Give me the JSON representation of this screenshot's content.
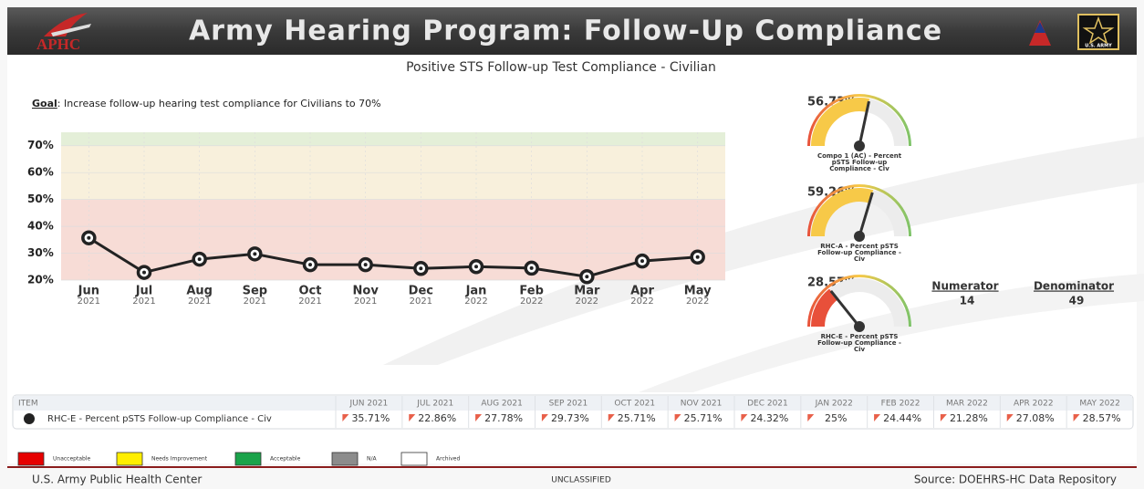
{
  "header": {
    "title": "Army Hearing Program: Follow-Up Compliance",
    "logo_left": "APHC",
    "logo_right": "U.S. ARMY"
  },
  "subtitle": "Positive STS Follow-up Test Compliance - Civilian",
  "goal": {
    "label": "Goal",
    "text": ": Increase follow-up hearing test compliance for Civilians to 70%"
  },
  "chart_data": {
    "type": "line",
    "categories": [
      "Jun",
      "Jul",
      "Aug",
      "Sep",
      "Oct",
      "Nov",
      "Dec",
      "Jan",
      "Feb",
      "Mar",
      "Apr",
      "May"
    ],
    "category_years": [
      "2021",
      "2021",
      "2021",
      "2021",
      "2021",
      "2021",
      "2021",
      "2022",
      "2022",
      "2022",
      "2022",
      "2022"
    ],
    "values": [
      35.71,
      22.86,
      27.78,
      29.73,
      25.71,
      25.71,
      24.32,
      25,
      24.44,
      21.28,
      27.08,
      28.57
    ],
    "color": "#222222",
    "ylim": [
      20,
      75
    ],
    "yticks": [
      {
        "value": 20,
        "label": "20%"
      },
      {
        "value": 30,
        "label": "30%"
      },
      {
        "value": 40,
        "label": "40%"
      },
      {
        "value": 50,
        "label": "50%"
      },
      {
        "value": 60,
        "label": "60%"
      },
      {
        "value": 70,
        "label": "70%"
      }
    ],
    "grid": true,
    "bands": [
      {
        "from": 20,
        "to": 50,
        "color": "#f7dcd6"
      },
      {
        "from": 50,
        "to": 70,
        "color": "#f8f0dc"
      },
      {
        "from": 70,
        "to": 75,
        "color": "#e4efd8"
      }
    ]
  },
  "gauge_range": [
    0,
    100
  ],
  "gauges": [
    {
      "value": 56.73,
      "label": "56.73%",
      "caption": [
        "Compo 1 (AC) - Percent",
        "pSTS Follow-up",
        "Compliance - Civ"
      ],
      "color": "#f7c948"
    },
    {
      "value": 59.26,
      "label": "59.26%",
      "caption": [
        "RHC-A - Percent pSTS",
        "Follow-up Compliance -",
        "Civ"
      ],
      "color": "#f7c948"
    },
    {
      "value": 28.57,
      "label": "28.57%",
      "caption": [
        "RHC-E - Percent pSTS",
        "Follow-up Compliance -",
        "Civ"
      ],
      "color": "#e8503a"
    }
  ],
  "counts": {
    "numerator_label": "Numerator",
    "numerator": 14,
    "denominator_label": "Denominator",
    "denominator": 49
  },
  "table": {
    "header": [
      "ITEM",
      "JUN 2021",
      "JUL 2021",
      "AUG 2021",
      "SEP 2021",
      "OCT 2021",
      "NOV 2021",
      "DEC 2021",
      "JAN 2022",
      "FEB 2022",
      "MAR 2022",
      "APR 2022",
      "MAY 2022"
    ],
    "rows": [
      [
        "RHC-E - Percent pSTS Follow-up Compliance - Civ",
        "35.71%",
        "22.86%",
        "27.78%",
        "29.73%",
        "25.71%",
        "25.71%",
        "24.32%",
        "25%",
        "24.44%",
        "21.28%",
        "27.08%",
        "28.57%"
      ]
    ]
  },
  "legend": [
    {
      "label": "Unacceptable",
      "color": "#e60000"
    },
    {
      "label": "Needs Improvement",
      "color": "#ffee00"
    },
    {
      "label": "Acceptable",
      "color": "#1aa34a"
    },
    {
      "label": "N/A",
      "color": "#8c8c8c"
    },
    {
      "label": "Archived",
      "color": "#ffffff"
    }
  ],
  "footer": {
    "left": "U.S. Army Public Health Center",
    "center": "UNCLASSIFIED",
    "right": "Source: DOEHRS-HC Data Repository"
  }
}
